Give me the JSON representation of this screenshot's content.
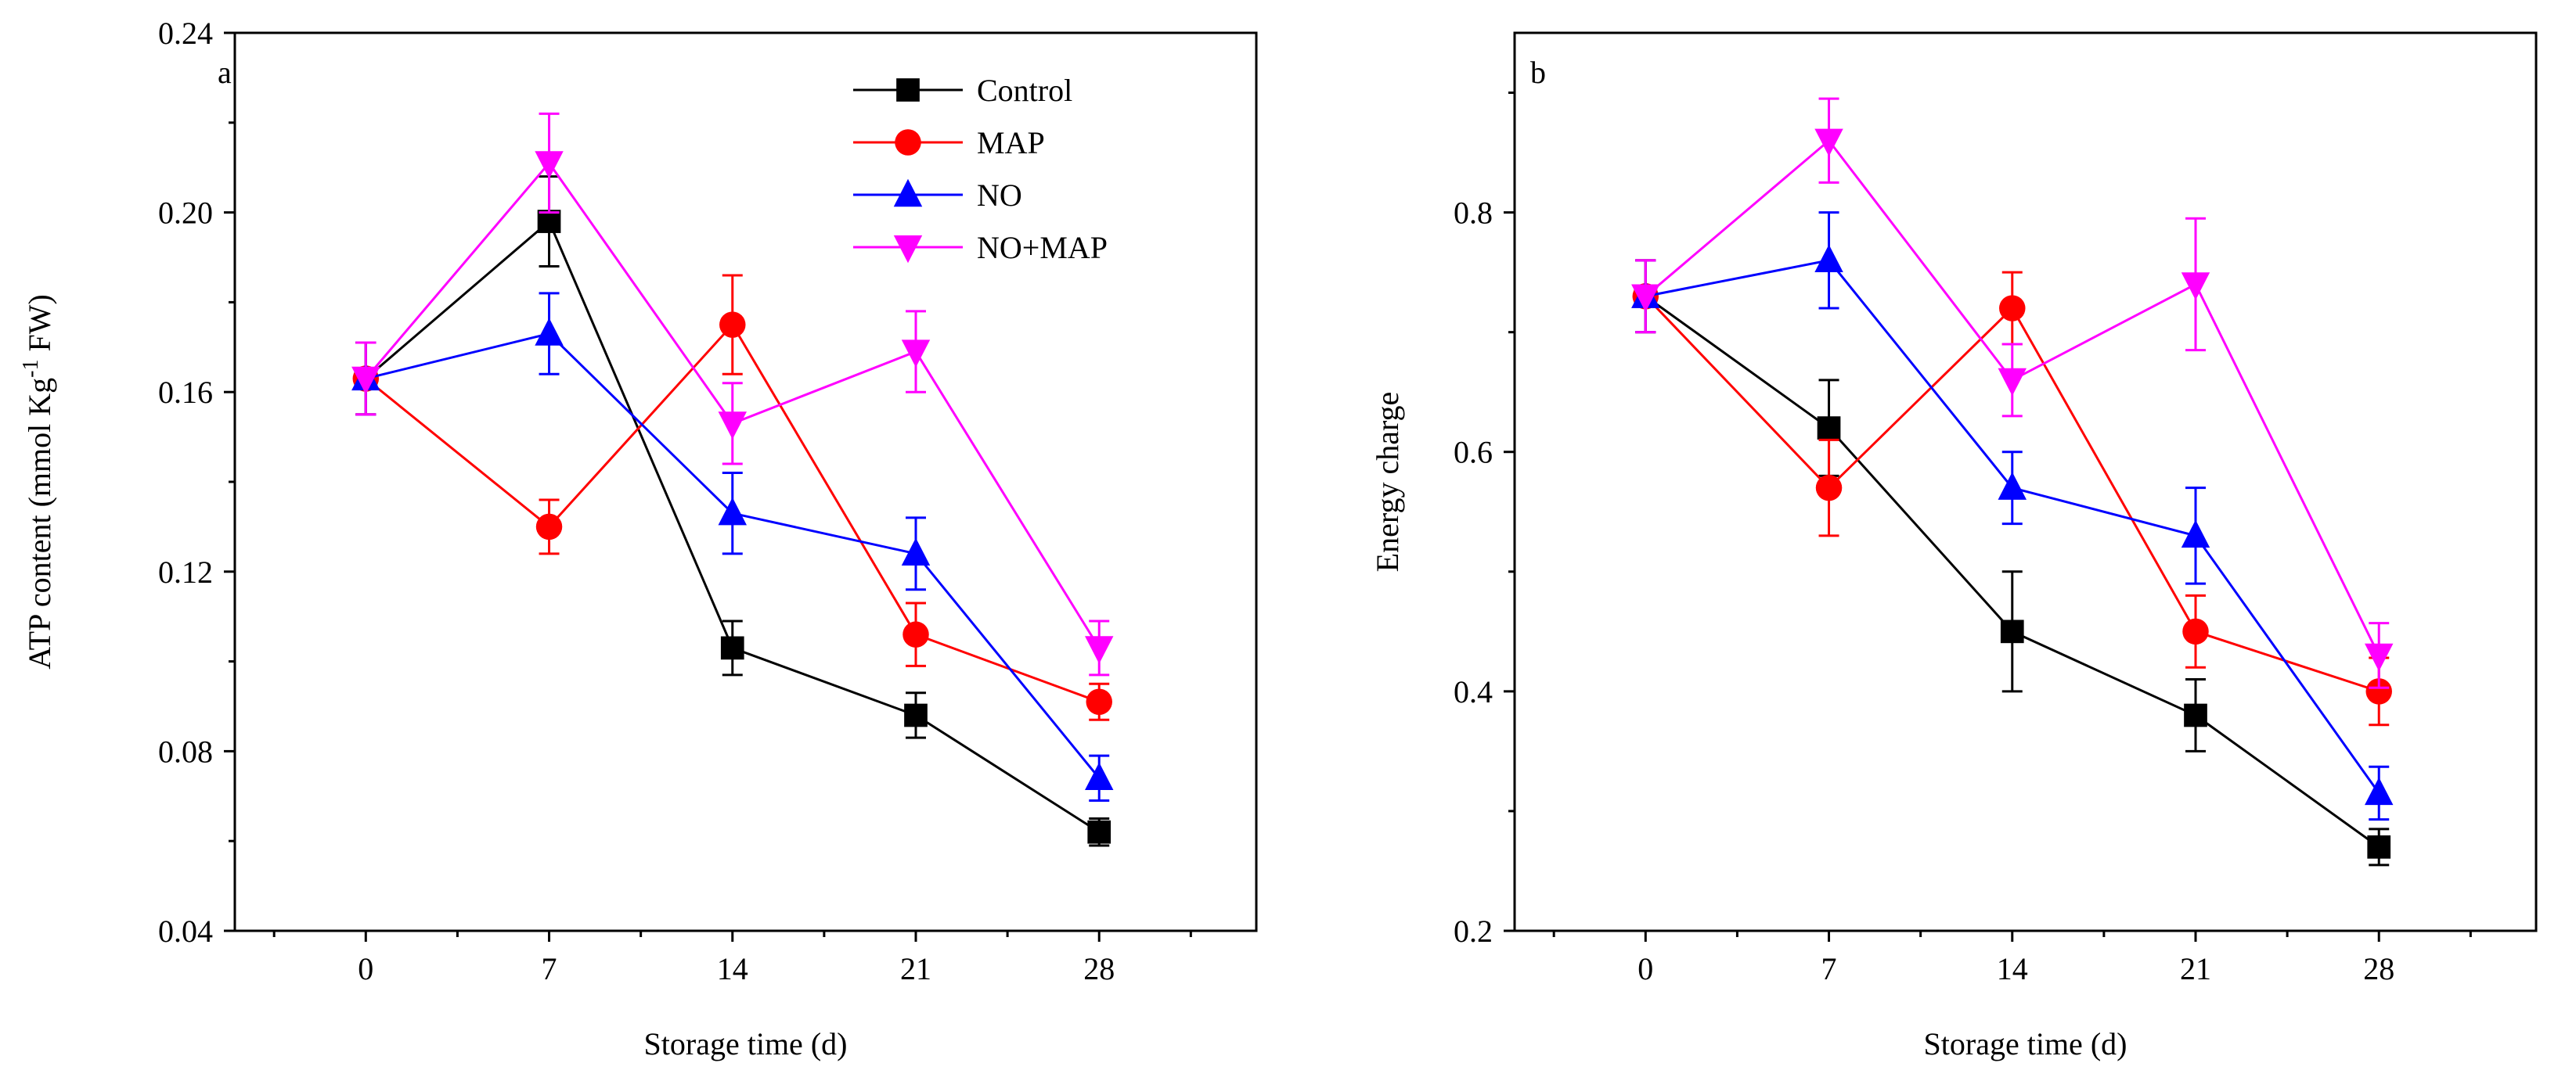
{
  "chart_data": [
    {
      "type": "line",
      "panel_label": "a",
      "title": "",
      "xlabel": "Storage time (d)",
      "ylabel_main": "ATP content (mmol Kg",
      "ylabel_sup": "-1",
      "ylabel_tail": " FW)",
      "x": [
        0,
        7,
        14,
        21,
        28
      ],
      "x_tick_labels": [
        "0",
        "7",
        "14",
        "21",
        "28"
      ],
      "xlim": [
        -5,
        34
      ],
      "ylim": [
        0.04,
        0.24
      ],
      "y_ticks": [
        0.04,
        0.08,
        0.12,
        0.16,
        0.2,
        0.24
      ],
      "y_tick_labels": [
        "0.04",
        "0.08",
        "0.12",
        "0.16",
        "0.20",
        "0.24"
      ],
      "grid": false,
      "legend_position": "top-right",
      "series": [
        {
          "name": "Control",
          "color": "#000000",
          "marker": "square",
          "values": [
            0.163,
            0.198,
            0.103,
            0.088,
            0.062
          ],
          "errors": [
            0.008,
            0.01,
            0.006,
            0.005,
            0.003
          ]
        },
        {
          "name": "MAP",
          "color": "#ff0000",
          "marker": "circle",
          "values": [
            0.163,
            0.13,
            0.175,
            0.106,
            0.091
          ],
          "errors": [
            0.008,
            0.006,
            0.011,
            0.007,
            0.004
          ]
        },
        {
          "name": "NO",
          "color": "#0000ff",
          "marker": "triangle-up",
          "values": [
            0.163,
            0.173,
            0.133,
            0.124,
            0.074
          ],
          "errors": [
            0.008,
            0.009,
            0.009,
            0.008,
            0.005
          ]
        },
        {
          "name": "NO+MAP",
          "color": "#ff00ff",
          "marker": "triangle-down",
          "values": [
            0.163,
            0.211,
            0.153,
            0.169,
            0.103
          ],
          "errors": [
            0.008,
            0.011,
            0.009,
            0.009,
            0.006
          ]
        }
      ]
    },
    {
      "type": "line",
      "panel_label": "b",
      "title": "",
      "xlabel": "Storage time (d)",
      "ylabel_main": "Energy charge",
      "ylabel_sup": "",
      "ylabel_tail": "",
      "x": [
        0,
        7,
        14,
        21,
        28
      ],
      "x_tick_labels": [
        "0",
        "7",
        "14",
        "21",
        "28"
      ],
      "xlim": [
        -5,
        34
      ],
      "ylim": [
        0.2,
        0.95
      ],
      "y_ticks": [
        0.2,
        0.4,
        0.6,
        0.8
      ],
      "y_tick_labels": [
        "0.2",
        "0.4",
        "0.6",
        "0.8"
      ],
      "grid": false,
      "legend_position": "none",
      "series": [
        {
          "name": "Control",
          "color": "#000000",
          "marker": "square",
          "values": [
            0.73,
            0.62,
            0.45,
            0.38,
            0.27
          ],
          "errors": [
            0.03,
            0.04,
            0.05,
            0.03,
            0.015
          ]
        },
        {
          "name": "MAP",
          "color": "#ff0000",
          "marker": "circle",
          "values": [
            0.73,
            0.57,
            0.72,
            0.45,
            0.4
          ],
          "errors": [
            0.03,
            0.04,
            0.03,
            0.03,
            0.028
          ]
        },
        {
          "name": "NO",
          "color": "#0000ff",
          "marker": "triangle-up",
          "values": [
            0.73,
            0.76,
            0.57,
            0.53,
            0.315
          ],
          "errors": [
            0.03,
            0.04,
            0.03,
            0.04,
            0.022
          ]
        },
        {
          "name": "NO+MAP",
          "color": "#ff00ff",
          "marker": "triangle-down",
          "values": [
            0.73,
            0.86,
            0.66,
            0.74,
            0.43
          ],
          "errors": [
            0.03,
            0.035,
            0.03,
            0.055,
            0.027
          ]
        }
      ]
    }
  ]
}
